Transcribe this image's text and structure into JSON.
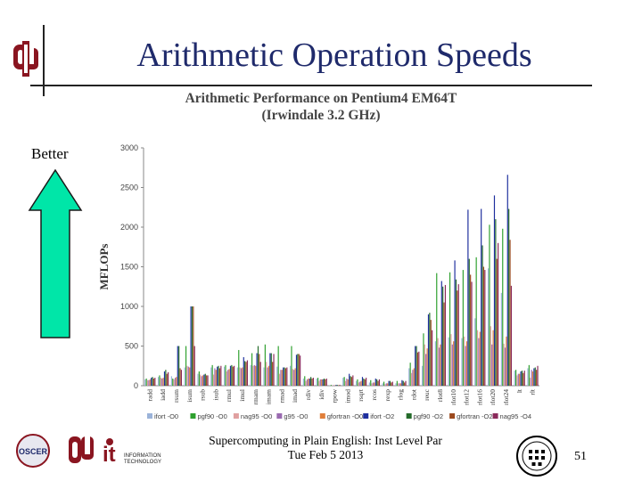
{
  "slide": {
    "title": "Arithmetic Operation Speeds",
    "better_label": "Better",
    "footer_line1": "Supercomputing in Plain English: Inst Level Par",
    "footer_line2": "Tue Feb 5 2013",
    "page_number": "51"
  },
  "logos": {
    "oscer": "OSCER",
    "ou": "OU",
    "it": "it",
    "it_caption_1": "INFORMATION",
    "it_caption_2": "TECHNOLOGY"
  },
  "colors": {
    "title": "#1f2a6b",
    "arrow_fill": "#00e6a8",
    "ou_crimson": "#8a1520"
  },
  "chart_data": {
    "type": "bar",
    "title_line1": "Arithmetic Performance on Pentium4 EM64T",
    "title_line2": "(Irwindale 3.2 GHz)",
    "xlabel": "",
    "ylabel": "MFLOPs",
    "ylim": [
      0,
      3000
    ],
    "yticks": [
      0,
      500,
      1000,
      1500,
      2000,
      2500,
      3000
    ],
    "grid": false,
    "legend_position": "bottom",
    "categories": [
      "radd",
      "iadd",
      "rsum",
      "isum",
      "rsub",
      "isub",
      "rmul",
      "imul",
      "rmam",
      "imam",
      "rmad",
      "imad",
      "rdiv",
      "idiv",
      "rpow",
      "imod",
      "rsqrt",
      "rcos",
      "rexp",
      "rlog",
      "rdot",
      "reuc",
      "rlot8",
      "rlot10",
      "rlot12",
      "rlot16",
      "rlot20",
      "rlot24",
      "lt",
      "rlt"
    ],
    "series": [
      {
        "name": "ifort -O0",
        "color": "#9bb3d9",
        "values": [
          80,
          110,
          120,
          230,
          150,
          230,
          240,
          230,
          260,
          230,
          240,
          250,
          90,
          90,
          5,
          100,
          60,
          40,
          30,
          30,
          220,
          250,
          560,
          610,
          600,
          850,
          1480,
          1170,
          190,
          220
        ]
      },
      {
        "name": "pgf90 -O0",
        "color": "#2ea02e",
        "values": [
          90,
          130,
          90,
          500,
          180,
          260,
          260,
          450,
          410,
          520,
          500,
          500,
          120,
          100,
          10,
          110,
          80,
          70,
          50,
          60,
          290,
          660,
          1420,
          1430,
          1460,
          1620,
          2030,
          1980,
          200,
          260
        ]
      },
      {
        "name": "nag95 -O0",
        "color": "#e0a0a0",
        "values": [
          70,
          100,
          80,
          250,
          140,
          140,
          180,
          230,
          250,
          300,
          150,
          210,
          60,
          60,
          5,
          60,
          40,
          30,
          20,
          30,
          160,
          520,
          600,
          650,
          620,
          700,
          750,
          530,
          130,
          100
        ]
      },
      {
        "name": "g95 -O0",
        "color": "#9a6ab0",
        "values": [
          70,
          90,
          100,
          240,
          120,
          220,
          200,
          220,
          260,
          230,
          200,
          200,
          80,
          80,
          5,
          90,
          50,
          40,
          30,
          30,
          200,
          400,
          480,
          520,
          500,
          600,
          520,
          480,
          150,
          200
        ]
      },
      {
        "name": "gfortran -O0",
        "color": "#e07f3a",
        "values": [
          80,
          100,
          110,
          230,
          130,
          200,
          210,
          230,
          250,
          250,
          200,
          220,
          90,
          80,
          5,
          80,
          60,
          40,
          30,
          30,
          220,
          470,
          520,
          560,
          560,
          680,
          700,
          620,
          150,
          180
        ]
      },
      {
        "name": "ifort -O2",
        "color": "#1e2f9e",
        "values": [
          100,
          180,
          500,
          1000,
          140,
          240,
          250,
          360,
          410,
          410,
          230,
          390,
          90,
          80,
          10,
          150,
          110,
          90,
          60,
          70,
          500,
          900,
          1320,
          1580,
          2220,
          2230,
          2400,
          2660,
          180,
          220
        ]
      },
      {
        "name": "pgf90 -O2",
        "color": "#246b2a",
        "values": [
          110,
          200,
          500,
          1000,
          150,
          250,
          260,
          310,
          500,
          410,
          230,
          400,
          110,
          90,
          10,
          120,
          90,
          80,
          60,
          60,
          500,
          920,
          1250,
          1340,
          1600,
          1770,
          2100,
          2230,
          190,
          230
        ]
      },
      {
        "name": "gfortran -O2",
        "color": "#9c4a1e",
        "values": [
          90,
          150,
          220,
          1000,
          130,
          220,
          240,
          300,
          400,
          300,
          220,
          400,
          90,
          80,
          5,
          110,
          80,
          60,
          40,
          40,
          420,
          830,
          1050,
          1200,
          1400,
          1500,
          1600,
          1840,
          160,
          200
        ]
      },
      {
        "name": "nag95 -O4",
        "color": "#8a2a5a",
        "values": [
          100,
          170,
          200,
          500,
          130,
          250,
          250,
          320,
          300,
          400,
          230,
          380,
          100,
          90,
          10,
          130,
          100,
          80,
          50,
          60,
          430,
          700,
          1270,
          1280,
          1310,
          1460,
          1800,
          1260,
          190,
          250
        ]
      }
    ]
  }
}
